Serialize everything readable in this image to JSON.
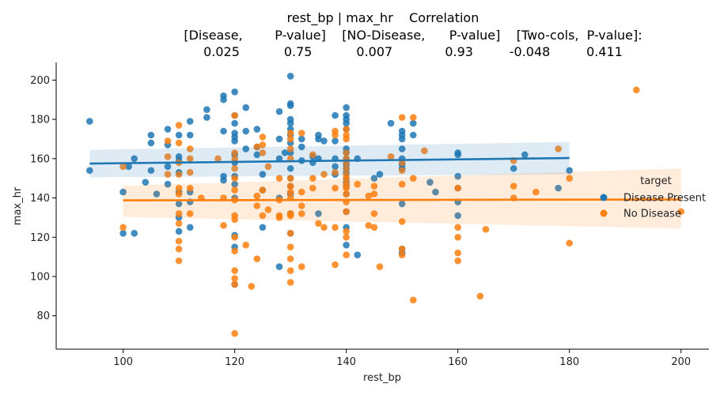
{
  "chart_data": {
    "type": "scatter",
    "title_lines": [
      "rest_bp | max_hr    Correlation",
      "[Disease,        P-value]    [NO-Disease,      P-value]    [Two-cols,  P-value]:",
      "0.025           0.75           0.007             0.93         -0.048         0.411"
    ],
    "xlabel": "rest_bp",
    "ylabel": "max_hr",
    "xlim": [
      88,
      205
    ],
    "ylim": [
      63,
      209
    ],
    "xticks": [
      100,
      120,
      140,
      160,
      180,
      200
    ],
    "yticks": [
      80,
      100,
      120,
      140,
      160,
      180,
      200
    ],
    "legend": {
      "title": "target",
      "placement": "right",
      "entries": [
        "Disease Present",
        "No Disease"
      ]
    },
    "colors": {
      "Disease Present": "#1f77b4",
      "No Disease": "#ff7f0e"
    },
    "series": [
      {
        "name": "Disease Present",
        "regression": {
          "x": [
            94,
            180
          ],
          "y": [
            157.5,
            160.3
          ],
          "ci_lower": [
            150.5,
            152.0
          ],
          "ci_upper": [
            164.5,
            168.5
          ]
        },
        "points": [
          [
            94,
            179
          ],
          [
            94,
            154
          ],
          [
            100,
            143
          ],
          [
            100,
            122
          ],
          [
            101,
            156
          ],
          [
            102,
            160
          ],
          [
            102,
            122
          ],
          [
            104,
            148
          ],
          [
            105,
            172
          ],
          [
            105,
            168
          ],
          [
            105,
            154
          ],
          [
            106,
            142
          ],
          [
            108,
            175
          ],
          [
            108,
            167
          ],
          [
            108,
            156
          ],
          [
            108,
            147
          ],
          [
            110,
            172
          ],
          [
            110,
            161
          ],
          [
            110,
            159
          ],
          [
            110,
            153
          ],
          [
            110,
            143
          ],
          [
            110,
            137
          ],
          [
            110,
            130
          ],
          [
            110,
            123
          ],
          [
            112,
            179
          ],
          [
            112,
            172
          ],
          [
            112,
            143
          ],
          [
            112,
            138
          ],
          [
            112,
            125
          ],
          [
            115,
            185
          ],
          [
            115,
            181
          ],
          [
            118,
            192
          ],
          [
            118,
            190
          ],
          [
            118,
            174
          ],
          [
            118,
            151
          ],
          [
            118,
            149
          ],
          [
            120,
            194
          ],
          [
            120,
            182
          ],
          [
            120,
            178
          ],
          [
            120,
            173
          ],
          [
            120,
            171
          ],
          [
            120,
            169
          ],
          [
            120,
            162
          ],
          [
            120,
            158
          ],
          [
            120,
            151
          ],
          [
            120,
            147
          ],
          [
            120,
            140
          ],
          [
            120,
            121
          ],
          [
            120,
            115
          ],
          [
            120,
            96
          ],
          [
            122,
            186
          ],
          [
            122,
            174
          ],
          [
            122,
            165
          ],
          [
            124,
            175
          ],
          [
            124,
            162
          ],
          [
            124,
            166
          ],
          [
            125,
            152
          ],
          [
            125,
            144
          ],
          [
            125,
            125
          ],
          [
            128,
            184
          ],
          [
            128,
            170
          ],
          [
            128,
            160
          ],
          [
            128,
            140
          ],
          [
            128,
            105
          ],
          [
            129,
            163
          ],
          [
            130,
            202
          ],
          [
            130,
            188
          ],
          [
            130,
            187
          ],
          [
            130,
            180
          ],
          [
            130,
            178
          ],
          [
            130,
            175
          ],
          [
            130,
            172
          ],
          [
            130,
            168
          ],
          [
            130,
            163
          ],
          [
            130,
            155
          ],
          [
            130,
            150
          ],
          [
            130,
            146
          ],
          [
            130,
            142
          ],
          [
            130,
            132
          ],
          [
            130,
            122
          ],
          [
            132,
            170
          ],
          [
            132,
            166
          ],
          [
            132,
            159
          ],
          [
            134,
            161
          ],
          [
            134,
            158
          ],
          [
            135,
            172
          ],
          [
            135,
            170
          ],
          [
            135,
            160
          ],
          [
            135,
            132
          ],
          [
            136,
            169
          ],
          [
            138,
            182
          ],
          [
            138,
            169
          ],
          [
            138,
            160
          ],
          [
            138,
            156
          ],
          [
            138,
            152
          ],
          [
            140,
            186
          ],
          [
            140,
            182
          ],
          [
            140,
            180
          ],
          [
            140,
            178
          ],
          [
            140,
            175
          ],
          [
            140,
            165
          ],
          [
            140,
            163
          ],
          [
            140,
            160
          ],
          [
            140,
            157
          ],
          [
            140,
            155
          ],
          [
            140,
            153
          ],
          [
            140,
            150
          ],
          [
            140,
            148
          ],
          [
            140,
            146
          ],
          [
            140,
            142
          ],
          [
            140,
            133
          ],
          [
            140,
            125
          ],
          [
            140,
            116
          ],
          [
            142,
            160
          ],
          [
            142,
            111
          ],
          [
            145,
            150
          ],
          [
            146,
            152
          ],
          [
            148,
            178
          ],
          [
            150,
            174
          ],
          [
            150,
            172
          ],
          [
            150,
            170
          ],
          [
            150,
            165
          ],
          [
            150,
            160
          ],
          [
            150,
            157
          ],
          [
            150,
            155
          ],
          [
            150,
            137
          ],
          [
            150,
            114
          ],
          [
            150,
            112
          ],
          [
            152,
            178
          ],
          [
            152,
            172
          ],
          [
            155,
            148
          ],
          [
            156,
            143
          ],
          [
            160,
            163
          ],
          [
            160,
            162
          ],
          [
            160,
            151
          ],
          [
            160,
            145
          ],
          [
            160,
            138
          ],
          [
            160,
            131
          ],
          [
            170,
            155
          ],
          [
            172,
            162
          ],
          [
            178,
            145
          ],
          [
            180,
            154
          ]
        ]
      },
      {
        "name": "No Disease",
        "regression": {
          "x": [
            100,
            200
          ],
          "y": [
            138.8,
            139.2
          ],
          "ci_lower": [
            130.3,
            124.5
          ],
          "ci_upper": [
            146.2,
            155.0
          ]
        },
        "points": [
          [
            100,
            156
          ],
          [
            100,
            125
          ],
          [
            108,
            169
          ],
          [
            108,
            161
          ],
          [
            108,
            152
          ],
          [
            110,
            177
          ],
          [
            110,
            168
          ],
          [
            110,
            158
          ],
          [
            110,
            152
          ],
          [
            110,
            145
          ],
          [
            110,
            142
          ],
          [
            110,
            132
          ],
          [
            110,
            127
          ],
          [
            110,
            118
          ],
          [
            110,
            114
          ],
          [
            110,
            108
          ],
          [
            112,
            165
          ],
          [
            112,
            160
          ],
          [
            112,
            153
          ],
          [
            112,
            145
          ],
          [
            112,
            132
          ],
          [
            114,
            140
          ],
          [
            117,
            160
          ],
          [
            118,
            140
          ],
          [
            118,
            126
          ],
          [
            120,
            182
          ],
          [
            120,
            163
          ],
          [
            120,
            160
          ],
          [
            120,
            155
          ],
          [
            120,
            150
          ],
          [
            120,
            144
          ],
          [
            120,
            139
          ],
          [
            120,
            131
          ],
          [
            120,
            129
          ],
          [
            120,
            120
          ],
          [
            120,
            113
          ],
          [
            120,
            103
          ],
          [
            120,
            99
          ],
          [
            120,
            96
          ],
          [
            120,
            71
          ],
          [
            122,
            116
          ],
          [
            123,
            95
          ],
          [
            124,
            166
          ],
          [
            124,
            141
          ],
          [
            124,
            136
          ],
          [
            124,
            109
          ],
          [
            125,
            171
          ],
          [
            125,
            167
          ],
          [
            125,
            163
          ],
          [
            125,
            144
          ],
          [
            125,
            131
          ],
          [
            126,
            156
          ],
          [
            126,
            134
          ],
          [
            128,
            150
          ],
          [
            128,
            139
          ],
          [
            128,
            131
          ],
          [
            128,
            130
          ],
          [
            130,
            173
          ],
          [
            130,
            170
          ],
          [
            130,
            165
          ],
          [
            130,
            160
          ],
          [
            130,
            150
          ],
          [
            130,
            146
          ],
          [
            130,
            143
          ],
          [
            130,
            140
          ],
          [
            130,
            132
          ],
          [
            130,
            131
          ],
          [
            130,
            122
          ],
          [
            130,
            115
          ],
          [
            130,
            109
          ],
          [
            130,
            103
          ],
          [
            130,
            97
          ],
          [
            132,
            173
          ],
          [
            132,
            143
          ],
          [
            132,
            136
          ],
          [
            132,
            132
          ],
          [
            132,
            105
          ],
          [
            134,
            162
          ],
          [
            134,
            150
          ],
          [
            134,
            145
          ],
          [
            135,
            127
          ],
          [
            136,
            152
          ],
          [
            136,
            125
          ],
          [
            138,
            174
          ],
          [
            138,
            172
          ],
          [
            138,
            153
          ],
          [
            138,
            145
          ],
          [
            138,
            125
          ],
          [
            138,
            106
          ],
          [
            140,
            175
          ],
          [
            140,
            172
          ],
          [
            140,
            170
          ],
          [
            140,
            163
          ],
          [
            140,
            160
          ],
          [
            140,
            158
          ],
          [
            140,
            155
          ],
          [
            140,
            152
          ],
          [
            140,
            150
          ],
          [
            140,
            147
          ],
          [
            140,
            145
          ],
          [
            140,
            142
          ],
          [
            140,
            138
          ],
          [
            140,
            133
          ],
          [
            140,
            123
          ],
          [
            140,
            120
          ],
          [
            140,
            111
          ],
          [
            142,
            147
          ],
          [
            144,
            141
          ],
          [
            144,
            126
          ],
          [
            145,
            146
          ],
          [
            145,
            142
          ],
          [
            145,
            132
          ],
          [
            145,
            125
          ],
          [
            146,
            105
          ],
          [
            148,
            161
          ],
          [
            150,
            181
          ],
          [
            150,
            158
          ],
          [
            150,
            154
          ],
          [
            150,
            147
          ],
          [
            150,
            128
          ],
          [
            150,
            114
          ],
          [
            150,
            111
          ],
          [
            152,
            181
          ],
          [
            152,
            150
          ],
          [
            152,
            88
          ],
          [
            154,
            164
          ],
          [
            160,
            145
          ],
          [
            160,
            125
          ],
          [
            160,
            120
          ],
          [
            160,
            112
          ],
          [
            160,
            108
          ],
          [
            164,
            90
          ],
          [
            165,
            124
          ],
          [
            170,
            159
          ],
          [
            170,
            146
          ],
          [
            170,
            140
          ],
          [
            174,
            143
          ],
          [
            178,
            165
          ],
          [
            180,
            150
          ],
          [
            180,
            117
          ],
          [
            192,
            195
          ],
          [
            200,
            133
          ]
        ]
      }
    ]
  }
}
